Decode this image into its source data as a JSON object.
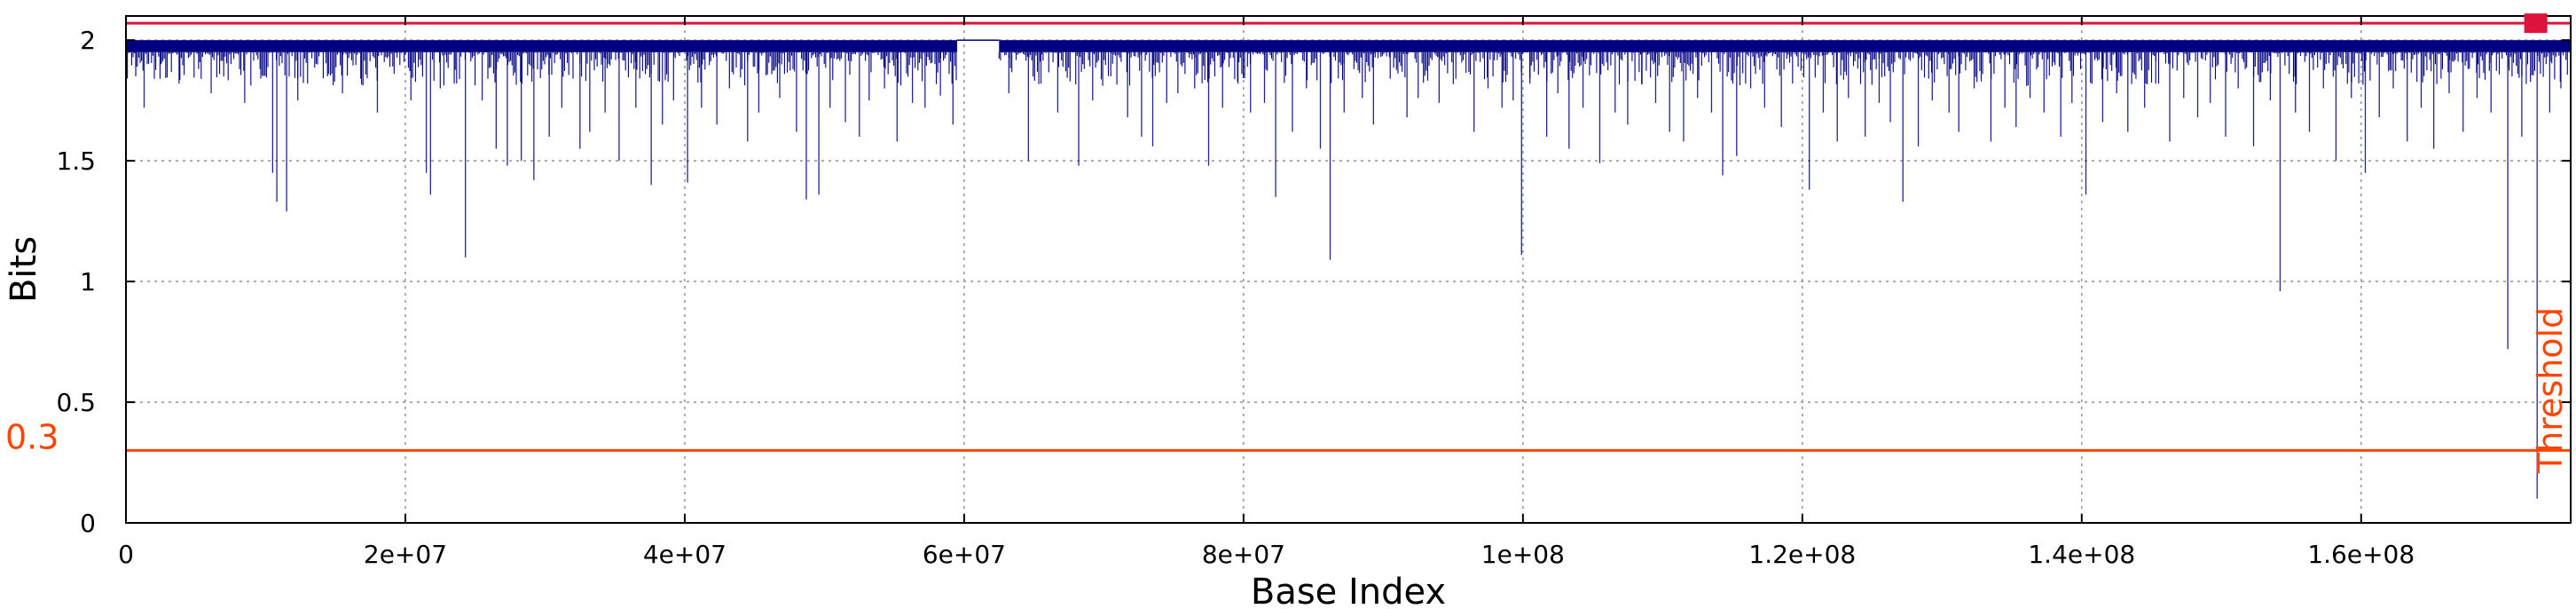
{
  "chart_data": {
    "type": "line",
    "title": "",
    "xlabel": "Base Index",
    "ylabel": "Bits",
    "xlim": [
      0,
      175000000
    ],
    "ylim": [
      0,
      2.1
    ],
    "grid": true,
    "x_ticks": [
      {
        "value": 0,
        "label": "0"
      },
      {
        "value": 20000000,
        "label": "2e+07"
      },
      {
        "value": 40000000,
        "label": "4e+07"
      },
      {
        "value": 60000000,
        "label": "6e+07"
      },
      {
        "value": 80000000,
        "label": "8e+07"
      },
      {
        "value": 100000000,
        "label": "1e+08"
      },
      {
        "value": 120000000,
        "label": "1.2e+08"
      },
      {
        "value": 140000000,
        "label": "1.4e+08"
      },
      {
        "value": 160000000,
        "label": "1.6e+08"
      }
    ],
    "y_ticks": [
      {
        "value": 0,
        "label": "0"
      },
      {
        "value": 0.5,
        "label": "0.5"
      },
      {
        "value": 1,
        "label": "1"
      },
      {
        "value": 1.5,
        "label": "1.5"
      },
      {
        "value": 2,
        "label": "2"
      }
    ],
    "series": [
      {
        "color": "#000080",
        "baseline": 2.0,
        "band_low": 1.95,
        "segments": [
          [
            0,
            59500000
          ],
          [
            62500000,
            175000000
          ]
        ],
        "gap_value": 2.0,
        "dips": [
          [
            700000,
            1.85
          ],
          [
            1300000,
            1.72
          ],
          [
            2500000,
            1.9
          ],
          [
            3800000,
            1.82
          ],
          [
            5200000,
            1.88
          ],
          [
            6100000,
            1.78
          ],
          [
            7000000,
            1.85
          ],
          [
            8500000,
            1.74
          ],
          [
            9600000,
            1.88
          ],
          [
            10500000,
            1.45
          ],
          [
            10800000,
            1.33
          ],
          [
            11500000,
            1.29
          ],
          [
            12300000,
            1.75
          ],
          [
            13000000,
            1.82
          ],
          [
            14500000,
            1.86
          ],
          [
            15500000,
            1.78
          ],
          [
            16800000,
            1.84
          ],
          [
            18000000,
            1.7
          ],
          [
            19200000,
            1.86
          ],
          [
            20400000,
            1.75
          ],
          [
            21500000,
            1.45
          ],
          [
            21800000,
            1.36
          ],
          [
            22500000,
            1.8
          ],
          [
            23500000,
            1.82
          ],
          [
            24300000,
            1.1
          ],
          [
            25500000,
            1.75
          ],
          [
            26500000,
            1.55
          ],
          [
            27300000,
            1.48
          ],
          [
            28300000,
            1.5
          ],
          [
            29200000,
            1.42
          ],
          [
            30300000,
            1.6
          ],
          [
            31200000,
            1.72
          ],
          [
            32500000,
            1.55
          ],
          [
            33200000,
            1.62
          ],
          [
            34300000,
            1.7
          ],
          [
            35300000,
            1.5
          ],
          [
            36500000,
            1.72
          ],
          [
            37600000,
            1.4
          ],
          [
            38400000,
            1.65
          ],
          [
            39200000,
            1.75
          ],
          [
            40200000,
            1.41
          ],
          [
            41200000,
            1.72
          ],
          [
            42300000,
            1.65
          ],
          [
            43200000,
            1.8
          ],
          [
            44500000,
            1.58
          ],
          [
            45300000,
            1.7
          ],
          [
            46800000,
            1.76
          ],
          [
            48000000,
            1.62
          ],
          [
            48700000,
            1.34
          ],
          [
            49600000,
            1.36
          ],
          [
            50400000,
            1.72
          ],
          [
            51500000,
            1.66
          ],
          [
            52500000,
            1.6
          ],
          [
            53200000,
            1.75
          ],
          [
            54300000,
            1.8
          ],
          [
            55200000,
            1.58
          ],
          [
            56300000,
            1.74
          ],
          [
            57200000,
            1.72
          ],
          [
            58300000,
            1.77
          ],
          [
            59200000,
            1.65
          ],
          [
            63200000,
            1.78
          ],
          [
            64600000,
            1.5
          ],
          [
            65500000,
            1.82
          ],
          [
            66700000,
            1.7
          ],
          [
            68200000,
            1.48
          ],
          [
            69200000,
            1.75
          ],
          [
            70500000,
            1.85
          ],
          [
            71700000,
            1.68
          ],
          [
            72700000,
            1.6
          ],
          [
            73500000,
            1.56
          ],
          [
            74500000,
            1.74
          ],
          [
            75300000,
            1.78
          ],
          [
            76500000,
            1.8
          ],
          [
            77500000,
            1.48
          ],
          [
            78500000,
            1.72
          ],
          [
            79600000,
            1.82
          ],
          [
            80500000,
            1.7
          ],
          [
            81500000,
            1.74
          ],
          [
            82300000,
            1.35
          ],
          [
            83500000,
            1.62
          ],
          [
            84500000,
            1.8
          ],
          [
            85500000,
            1.55
          ],
          [
            86200000,
            1.09
          ],
          [
            87200000,
            1.7
          ],
          [
            88500000,
            1.76
          ],
          [
            89300000,
            1.65
          ],
          [
            90500000,
            1.84
          ],
          [
            91700000,
            1.68
          ],
          [
            92500000,
            1.76
          ],
          [
            94000000,
            1.74
          ],
          [
            95200000,
            1.84
          ],
          [
            96500000,
            1.62
          ],
          [
            97500000,
            1.8
          ],
          [
            98500000,
            1.72
          ],
          [
            99300000,
            1.75
          ],
          [
            99900000,
            1.11
          ],
          [
            100500000,
            1.82
          ],
          [
            101700000,
            1.6
          ],
          [
            102500000,
            1.78
          ],
          [
            103300000,
            1.55
          ],
          [
            104300000,
            1.72
          ],
          [
            105500000,
            1.49
          ],
          [
            106600000,
            1.7
          ],
          [
            107500000,
            1.65
          ],
          [
            108500000,
            1.82
          ],
          [
            109500000,
            1.74
          ],
          [
            110500000,
            1.62
          ],
          [
            111500000,
            1.58
          ],
          [
            112500000,
            1.76
          ],
          [
            113500000,
            1.7
          ],
          [
            114300000,
            1.44
          ],
          [
            115300000,
            1.52
          ],
          [
            116300000,
            1.8
          ],
          [
            117300000,
            1.72
          ],
          [
            118500000,
            1.64
          ],
          [
            119300000,
            1.82
          ],
          [
            120500000,
            1.38
          ],
          [
            121500000,
            1.7
          ],
          [
            122500000,
            1.58
          ],
          [
            123300000,
            1.76
          ],
          [
            124500000,
            1.6
          ],
          [
            125500000,
            1.74
          ],
          [
            126300000,
            1.66
          ],
          [
            127200000,
            1.33
          ],
          [
            128300000,
            1.56
          ],
          [
            129300000,
            1.75
          ],
          [
            130500000,
            1.7
          ],
          [
            131200000,
            1.62
          ],
          [
            132300000,
            1.8
          ],
          [
            133500000,
            1.58
          ],
          [
            134500000,
            1.72
          ],
          [
            135300000,
            1.64
          ],
          [
            136300000,
            1.76
          ],
          [
            137300000,
            1.7
          ],
          [
            138500000,
            1.6
          ],
          [
            139300000,
            1.74
          ],
          [
            140300000,
            1.36
          ],
          [
            141500000,
            1.66
          ],
          [
            142500000,
            1.78
          ],
          [
            143300000,
            1.62
          ],
          [
            144500000,
            1.72
          ],
          [
            145300000,
            1.82
          ],
          [
            146300000,
            1.58
          ],
          [
            147300000,
            1.76
          ],
          [
            148300000,
            1.68
          ],
          [
            149200000,
            1.74
          ],
          [
            150300000,
            1.6
          ],
          [
            151200000,
            1.8
          ],
          [
            152300000,
            1.56
          ],
          [
            153500000,
            1.75
          ],
          [
            154200000,
            0.96
          ],
          [
            155300000,
            1.7
          ],
          [
            156300000,
            1.62
          ],
          [
            157300000,
            1.8
          ],
          [
            158200000,
            1.5
          ],
          [
            159300000,
            1.76
          ],
          [
            160300000,
            1.45
          ],
          [
            161300000,
            1.68
          ],
          [
            162300000,
            1.8
          ],
          [
            163300000,
            1.58
          ],
          [
            164300000,
            1.72
          ],
          [
            165200000,
            1.55
          ],
          [
            166300000,
            1.78
          ],
          [
            167300000,
            1.62
          ],
          [
            168300000,
            1.76
          ],
          [
            169300000,
            1.7
          ],
          [
            170500000,
            0.72
          ],
          [
            171500000,
            1.6
          ],
          [
            172600000,
            0.1
          ],
          [
            173500000,
            1.7
          ],
          [
            174300000,
            1.8
          ]
        ]
      }
    ],
    "reference_lines": [
      {
        "y": 2.07,
        "color": "#dc143c"
      },
      {
        "y": 0.3,
        "color": "#ff4500"
      }
    ],
    "threshold": {
      "value": 0.3,
      "value_label": "0.3",
      "label": "Threshold",
      "color": "#ff4500"
    },
    "marker": {
      "x": 172500000,
      "y": 2.07,
      "color": "#dc143c",
      "shape": "square"
    }
  }
}
